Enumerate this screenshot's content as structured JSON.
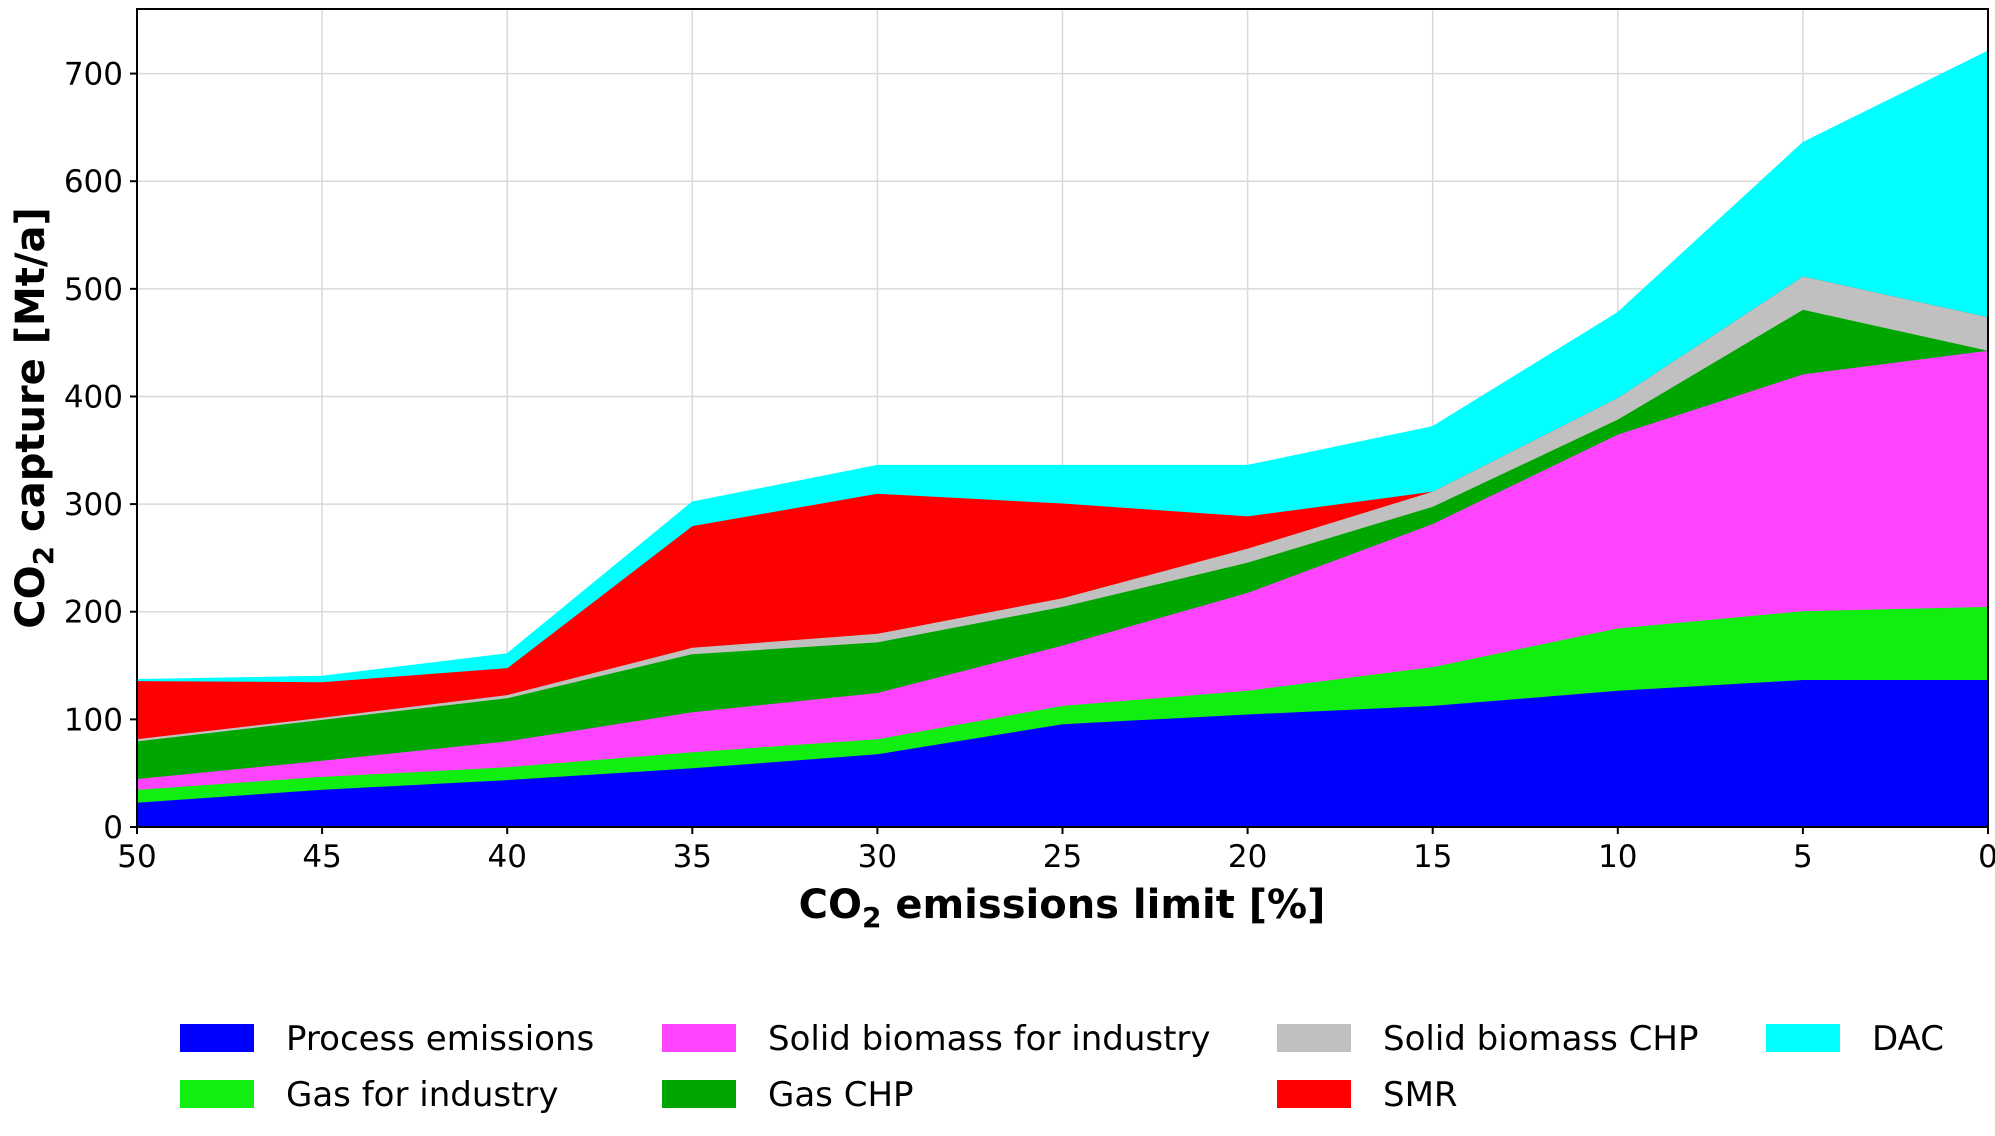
{
  "chart_data": {
    "type": "area",
    "stacked": true,
    "title": "",
    "xlabel": {
      "prefix": "CO",
      "sub": "2",
      "suffix": " emissions limit [%]"
    },
    "ylabel": {
      "prefix": "CO",
      "sub": "2",
      "suffix": " capture [Mt/a]"
    },
    "x": [
      50,
      45,
      40,
      35,
      30,
      25,
      20,
      15,
      10,
      5,
      0
    ],
    "x_tick_labels": [
      "50",
      "45",
      "40",
      "35",
      "30",
      "25",
      "20",
      "15",
      "10",
      "5",
      "0"
    ],
    "xlim": [
      50,
      0
    ],
    "ylim": [
      0,
      760
    ],
    "y_ticks": [
      0,
      100,
      200,
      300,
      400,
      500,
      600,
      700
    ],
    "y_tick_labels": [
      "0",
      "100",
      "200",
      "300",
      "400",
      "500",
      "600",
      "700"
    ],
    "grid": true,
    "legend_position": "bottom",
    "series": [
      {
        "name": "Process emissions",
        "color": "#0000ff",
        "values": [
          23,
          35,
          44,
          55,
          68,
          96,
          105,
          113,
          127,
          137,
          137
        ]
      },
      {
        "name": "Gas for industry",
        "color": "#11ef11",
        "values": [
          12,
          12,
          12,
          15,
          14,
          17,
          22,
          36,
          58,
          64,
          68
        ]
      },
      {
        "name": "Solid biomass for industry",
        "color": "#ff44ff",
        "values": [
          10,
          15,
          24,
          37,
          43,
          56,
          91,
          133,
          180,
          220,
          238
        ]
      },
      {
        "name": "Gas CHP",
        "color": "#00a600",
        "values": [
          35,
          38,
          40,
          54,
          47,
          36,
          28,
          16,
          14,
          60,
          0
        ]
      },
      {
        "name": "Solid biomass CHP",
        "color": "#c0c0c0",
        "values": [
          2,
          2,
          3,
          6,
          8,
          8,
          13,
          14,
          20,
          31,
          31
        ]
      },
      {
        "name": "SMR",
        "color": "#ff0000",
        "values": [
          54,
          33,
          25,
          113,
          130,
          88,
          30,
          0,
          0,
          0,
          0
        ]
      },
      {
        "name": "DAC",
        "color": "#00ffff",
        "values": [
          1,
          5,
          13,
          22,
          26,
          35,
          47,
          60,
          79,
          124,
          247
        ]
      }
    ]
  }
}
